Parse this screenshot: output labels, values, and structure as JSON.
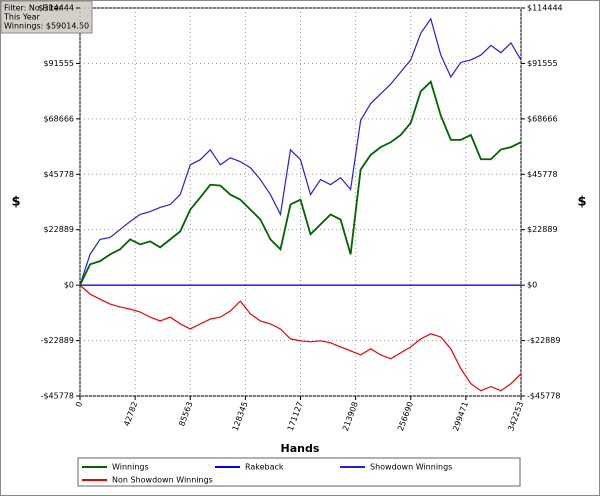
{
  "info": {
    "filter": "Filter: No Filter",
    "period": "This Year",
    "winnings": "Winnings: $59014.50"
  },
  "chart_data": {
    "type": "line",
    "xlabel": "Hands",
    "ylabel": "$",
    "x": [
      0,
      7778,
      15556,
      23334,
      31112,
      38890,
      46668,
      54446,
      62224,
      70002,
      77780,
      85558,
      93336,
      101114,
      108892,
      116670,
      124448,
      132226,
      140004,
      147782,
      155560,
      163338,
      171116,
      178894,
      186672,
      194450,
      202228,
      210006,
      217784,
      225562,
      233340,
      241118,
      248896,
      256674,
      264452,
      272230,
      280008,
      287786,
      295564,
      303342,
      311120,
      318898,
      326676,
      334454,
      342232
    ],
    "xlim": [
      0,
      342253
    ],
    "xticks": [
      0,
      42782,
      85563,
      128345,
      171127,
      213908,
      256690,
      299471,
      342253
    ],
    "ylim": [
      -45778,
      114444
    ],
    "yticks": [
      {
        "value": -45778,
        "label": "-$45778"
      },
      {
        "value": -22889,
        "label": "-$22889"
      },
      {
        "value": 0,
        "label": "$0"
      },
      {
        "value": 22889,
        "label": "$22889"
      },
      {
        "value": 45778,
        "label": "$45778"
      },
      {
        "value": 68666,
        "label": "$68666"
      },
      {
        "value": 91555,
        "label": "$91555"
      },
      {
        "value": 114444,
        "label": "$114444"
      }
    ],
    "grid": true,
    "series": [
      {
        "name": "Winnings",
        "color": "#006400",
        "values": [
          0,
          8600,
          9900,
          12700,
          14800,
          18900,
          16800,
          18100,
          15600,
          18900,
          22200,
          31200,
          36200,
          41500,
          41100,
          37400,
          35300,
          31200,
          27100,
          18900,
          14800,
          33300,
          35300,
          21000,
          25100,
          29200,
          27100,
          12700,
          47700,
          53800,
          57000,
          59000,
          62000,
          67000,
          80000,
          84000,
          70000,
          60000,
          60000,
          62000,
          52000,
          52000,
          56000,
          57000,
          59014
        ]
      },
      {
        "name": "Rakeback",
        "color": "#0000ff",
        "values": [
          0,
          0,
          0,
          0,
          0,
          0,
          0,
          0,
          0,
          0,
          0,
          0,
          0,
          0,
          0,
          0,
          0,
          0,
          0,
          0,
          0,
          0,
          0,
          0,
          0,
          0,
          0,
          0,
          0,
          0,
          0,
          0,
          0,
          0,
          0,
          0,
          0,
          0,
          0,
          0,
          0,
          0,
          0,
          0,
          0
        ]
      },
      {
        "name": "Showdown Winnings",
        "color": "#2222dd",
        "values": [
          0,
          12700,
          18900,
          19700,
          23000,
          26300,
          29200,
          30400,
          32100,
          33300,
          37400,
          49700,
          51800,
          55900,
          49700,
          52600,
          51000,
          48500,
          43600,
          37400,
          29200,
          55900,
          51800,
          37400,
          43600,
          41500,
          44400,
          39500,
          68000,
          75000,
          79000,
          83000,
          88000,
          93000,
          104000,
          110000,
          95000,
          86000,
          92000,
          93000,
          95000,
          99000,
          96000,
          100000,
          93000
        ]
      },
      {
        "name": "Non Showdown Winnings",
        "color": "#ee0000",
        "values": [
          0,
          -3700,
          -5800,
          -7800,
          -9000,
          -9900,
          -11100,
          -13200,
          -14800,
          -13200,
          -16000,
          -18100,
          -16000,
          -14000,
          -13200,
          -10700,
          -6600,
          -11900,
          -14800,
          -16000,
          -18100,
          -22200,
          -23000,
          -23400,
          -23000,
          -23800,
          -25500,
          -27100,
          -28800,
          -26300,
          -28800,
          -30400,
          -27900,
          -25500,
          -22200,
          -20100,
          -21400,
          -26300,
          -34500,
          -40700,
          -43600,
          -41900,
          -43600,
          -40700,
          -36600
        ]
      }
    ]
  }
}
